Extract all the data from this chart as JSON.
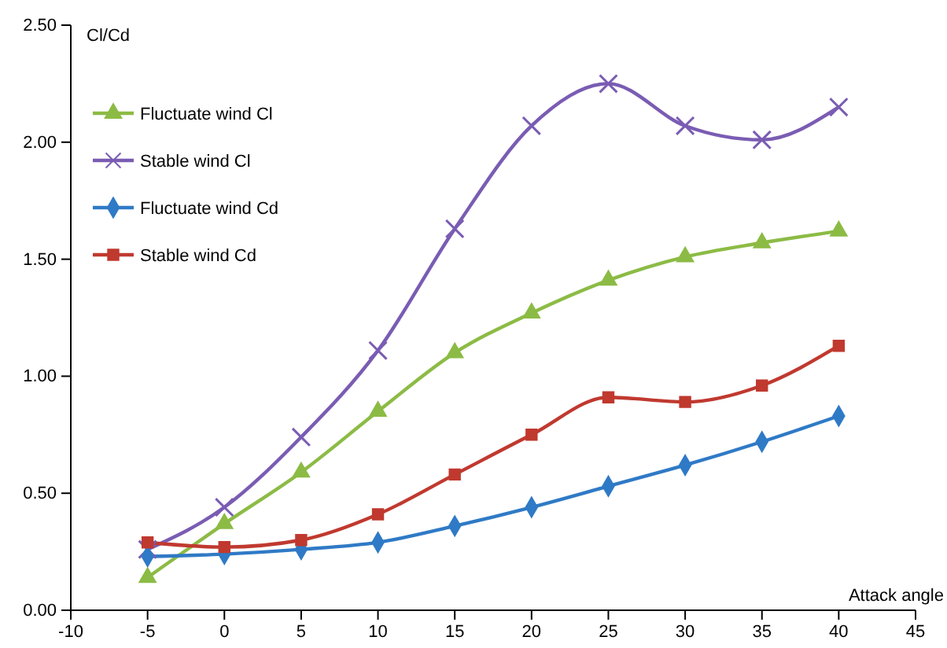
{
  "chart_data": {
    "type": "line",
    "xlabel": "Attack angle",
    "ylabel": "Cl/Cd",
    "x": [
      -5,
      0,
      5,
      10,
      15,
      20,
      25,
      30,
      35,
      40
    ],
    "xlim": [
      -10,
      45
    ],
    "xticks": [
      -10,
      -5,
      0,
      5,
      10,
      15,
      20,
      25,
      30,
      35,
      40,
      45
    ],
    "ylim": [
      0,
      2.5
    ],
    "yticks": [
      {
        "value": 0,
        "label": "0.00"
      },
      {
        "value": 0.5,
        "label": "0.50"
      },
      {
        "value": 1,
        "label": "1.00"
      },
      {
        "value": 1.5,
        "label": "1.50"
      },
      {
        "value": 2,
        "label": "2.00"
      },
      {
        "value": 2.5,
        "label": "2.50"
      }
    ],
    "legend": "top left",
    "grid": false,
    "line_style": "solid",
    "series": [
      {
        "name": "Fluctuate wind Cl",
        "color": "#8cbb45",
        "marker": "triangle",
        "values": [
          0.14,
          0.37,
          0.59,
          0.85,
          1.1,
          1.27,
          1.41,
          1.51,
          1.57,
          1.62
        ]
      },
      {
        "name": "Stable wind Cl",
        "color": "#7a5cb3",
        "marker": "cross",
        "values": [
          0.26,
          0.44,
          0.74,
          1.11,
          1.63,
          2.07,
          2.25,
          2.07,
          2.01,
          2.15
        ]
      },
      {
        "name": "Fluctuate wind Cd",
        "color": "#2f7ac6",
        "marker": "diamond",
        "values": [
          0.23,
          0.24,
          0.26,
          0.29,
          0.36,
          0.44,
          0.53,
          0.62,
          0.72,
          0.83
        ]
      },
      {
        "name": "Stable wind Cd",
        "color": "#c0392f",
        "marker": "square",
        "values": [
          0.29,
          0.27,
          0.3,
          0.41,
          0.58,
          0.75,
          0.91,
          0.89,
          0.96,
          1.13
        ]
      }
    ]
  }
}
